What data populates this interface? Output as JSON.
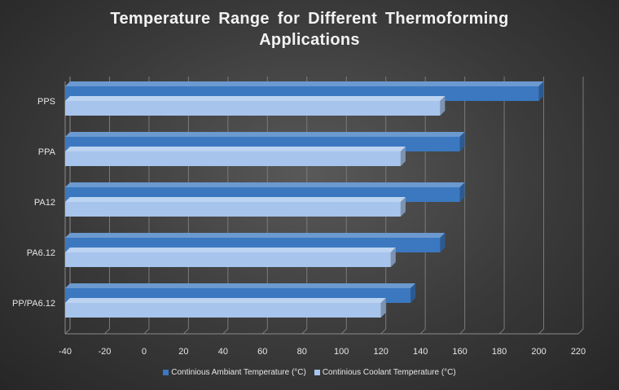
{
  "chart_data": {
    "type": "bar",
    "orientation": "horizontal",
    "title_lines": [
      "Temperature  Range  for  Different  Thermoforming",
      "Applications"
    ],
    "categories": [
      "PPS",
      "PPA",
      "PA12",
      "PA6.12",
      "PP/PA6.12"
    ],
    "series": [
      {
        "name": "Continious Ambiant Temperature (°C)",
        "color": "#3b78c0",
        "values": [
          200,
          160,
          160,
          150,
          135
        ]
      },
      {
        "name": "Continious Coolant Temperature (°C)",
        "color": "#a6c4ec",
        "values": [
          150,
          130,
          130,
          125,
          120
        ]
      }
    ],
    "xlim": [
      -40,
      220
    ],
    "xticks": [
      "-40",
      "-20",
      "0",
      "20",
      "40",
      "60",
      "80",
      "100",
      "120",
      "140",
      "160",
      "180",
      "200",
      "220"
    ],
    "xlabel": "",
    "ylabel": "",
    "grid": true,
    "legend_position": "bottom"
  }
}
